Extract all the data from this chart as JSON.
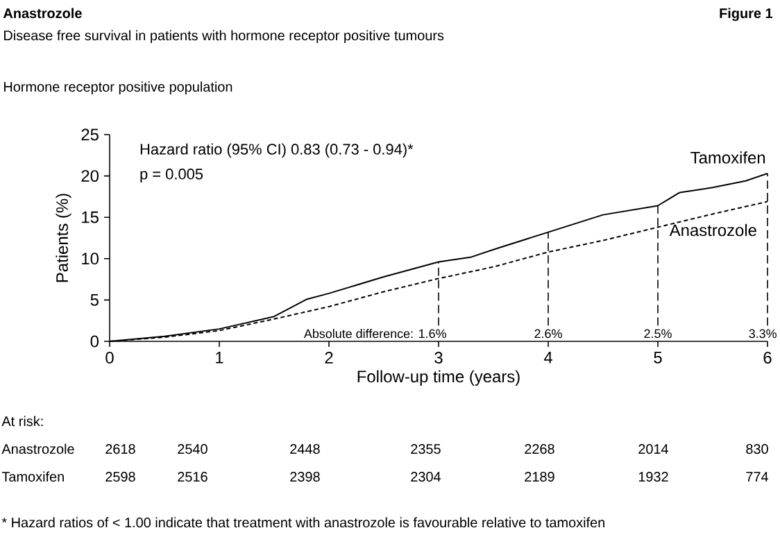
{
  "chart_data": {
    "type": "line",
    "title": "Anastrozole",
    "subtitle": "Disease free survival in patients with hormone receptor positive tumours",
    "xlabel": "Follow-up time (years)",
    "ylabel": "Patients (%)",
    "xlim": [
      0,
      6
    ],
    "ylim": [
      0,
      25
    ],
    "xticks": [
      0,
      1,
      2,
      3,
      4,
      5,
      6
    ],
    "yticks": [
      0,
      5,
      10,
      15,
      20,
      25
    ],
    "grid": false,
    "marker": "none",
    "series": [
      {
        "name": "Tamoxifen",
        "color": "#000000",
        "line_style": "solid",
        "x": [
          0,
          0.5,
          1,
          1.5,
          1.8,
          2,
          2.5,
          3,
          3.3,
          3.5,
          4,
          4.5,
          5,
          5.1,
          5.2,
          5.5,
          5.8,
          6
        ],
        "values": [
          0,
          0.6,
          1.5,
          3.0,
          5.1,
          5.8,
          7.8,
          9.6,
          10.2,
          11.1,
          13.2,
          15.3,
          16.4,
          17.2,
          18.0,
          18.6,
          19.4,
          20.3
        ]
      },
      {
        "name": "Anastrozole",
        "color": "#000000",
        "line_style": "dashed",
        "x": [
          0,
          0.5,
          1,
          1.5,
          2,
          2.5,
          3,
          3.5,
          4,
          4.5,
          5,
          5.5,
          6
        ],
        "values": [
          0,
          0.5,
          1.3,
          2.7,
          4.2,
          6.0,
          7.6,
          9.0,
          10.8,
          12.2,
          13.8,
          15.4,
          16.9
        ]
      }
    ],
    "ref_lines": [
      {
        "axis": "x",
        "value": 3,
        "line_style": "dashed"
      },
      {
        "axis": "x",
        "value": 4,
        "line_style": "dashed"
      },
      {
        "axis": "x",
        "value": 5,
        "line_style": "dashed"
      },
      {
        "axis": "x",
        "value": 6,
        "line_style": "dashed"
      }
    ],
    "annotations": [
      "Figure 1",
      "Hormone receptor positive population",
      "Hazard ratio (95% CI) 0.83 (0.73 - 0.94)*",
      "p = 0.005",
      "At risk:",
      "Anastrozole",
      "2618",
      "2540",
      "2448",
      "2355",
      "2268",
      "2014",
      "830",
      "Tamoxifen",
      "2598",
      "2516",
      "2398",
      "2304",
      "2189",
      "1932",
      "774",
      "* Hazard ratios of < 1.00 indicate that treatment with anastrozole is favourable relative to tamoxifen",
      "Absolute difference: 1.6%",
      "2.6%",
      "2.5%",
      "3.3%"
    ]
  }
}
